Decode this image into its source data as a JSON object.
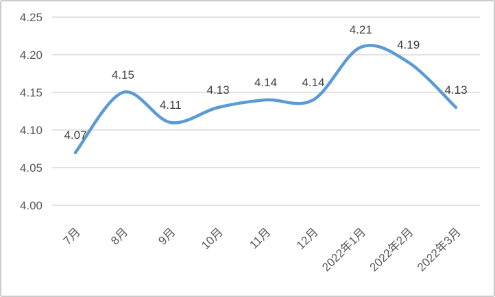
{
  "chart_data": {
    "type": "line",
    "title": "",
    "categories": [
      "7月",
      "8月",
      "9月",
      "10月",
      "11月",
      "12月",
      "2022年1月",
      "2022年2月",
      "2022年3月"
    ],
    "series": [
      {
        "name": "",
        "values": [
          4.07,
          4.15,
          4.11,
          4.13,
          4.14,
          4.14,
          4.21,
          4.19,
          4.13
        ]
      }
    ],
    "data_labels": [
      "4.07",
      "4.15",
      "4.11",
      "4.13",
      "4.14",
      "4.14",
      "4.21",
      "4.19",
      "4.13"
    ],
    "y_ticks": [
      {
        "label": "4.25",
        "value": 4.25
      },
      {
        "label": "4.20",
        "value": 4.2
      },
      {
        "label": "4.15",
        "value": 4.15
      },
      {
        "label": "4.10",
        "value": 4.1
      },
      {
        "label": "4.05",
        "value": 4.05
      },
      {
        "label": "4.00",
        "value": 4.0
      }
    ],
    "ylim": [
      4.0,
      4.25
    ],
    "xlabel": "",
    "ylabel": "",
    "grid": true,
    "legend": "none",
    "smooth": true,
    "colors": {
      "line": "#5B9BD5",
      "gridline": "#D9D9D9",
      "axis_label": "#595959",
      "data_label": "#404040",
      "background": "#FFFFFF",
      "frame_border": "#CBCBCB"
    }
  }
}
